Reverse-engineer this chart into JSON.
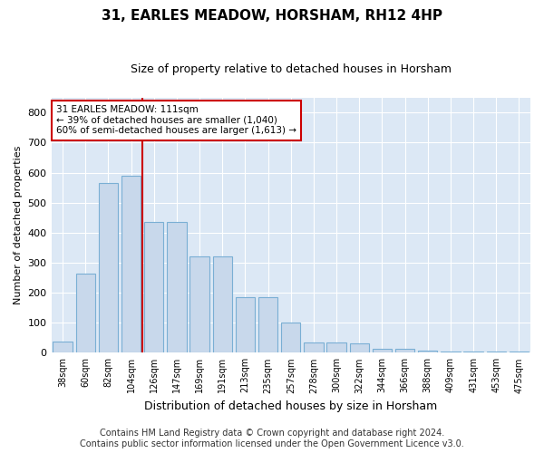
{
  "title": "31, EARLES MEADOW, HORSHAM, RH12 4HP",
  "subtitle": "Size of property relative to detached houses in Horsham",
  "xlabel": "Distribution of detached houses by size in Horsham",
  "ylabel": "Number of detached properties",
  "bar_labels": [
    "38sqm",
    "60sqm",
    "82sqm",
    "104sqm",
    "126sqm",
    "147sqm",
    "169sqm",
    "191sqm",
    "213sqm",
    "235sqm",
    "257sqm",
    "278sqm",
    "300sqm",
    "322sqm",
    "344sqm",
    "366sqm",
    "388sqm",
    "409sqm",
    "431sqm",
    "453sqm",
    "475sqm"
  ],
  "bar_heights": [
    38,
    265,
    565,
    590,
    435,
    435,
    320,
    320,
    185,
    185,
    100,
    35,
    35,
    30,
    12,
    12,
    8,
    5,
    5,
    3,
    5
  ],
  "bar_color": "#c8d8eb",
  "bar_edge_color": "#7aafd4",
  "bar_linewidth": 0.8,
  "vline_x": 3.5,
  "vline_color": "#cc0000",
  "ylim": [
    0,
    850
  ],
  "yticks": [
    0,
    100,
    200,
    300,
    400,
    500,
    600,
    700,
    800
  ],
  "annotation_text": "31 EARLES MEADOW: 111sqm\n← 39% of detached houses are smaller (1,040)\n60% of semi-detached houses are larger (1,613) →",
  "annotation_box_color": "#ffffff",
  "annotation_border_color": "#cc0000",
  "footer_line1": "Contains HM Land Registry data © Crown copyright and database right 2024.",
  "footer_line2": "Contains public sector information licensed under the Open Government Licence v3.0.",
  "fig_bg_color": "#ffffff",
  "plot_bg_color": "#dce8f5",
  "grid_color": "#ffffff",
  "title_fontsize": 11,
  "subtitle_fontsize": 9,
  "ylabel_fontsize": 8,
  "xlabel_fontsize": 9,
  "tick_fontsize": 7,
  "footer_fontsize": 7,
  "annotation_fontsize": 7.5
}
